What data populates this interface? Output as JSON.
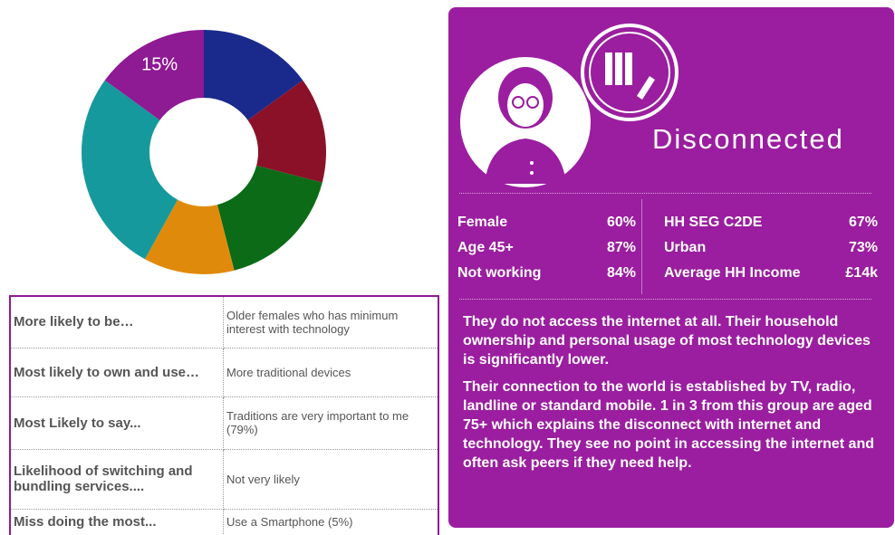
{
  "chart_data": {
    "type": "pie",
    "donut": true,
    "values": [
      15,
      14,
      17,
      12,
      27,
      15
    ],
    "value_labels": [
      null,
      null,
      null,
      null,
      null,
      "15%"
    ],
    "colors": [
      "#1a2a8c",
      "#8b1128",
      "#0b6b17",
      "#e08a0c",
      "#16999c",
      "#8e1a94"
    ]
  },
  "table": {
    "rows": [
      [
        "More likely to be…",
        "Older females who has minimum interest with technology"
      ],
      [
        "Most likely to own and use…",
        "More traditional devices"
      ],
      [
        "Most Likely to say...",
        "Traditions are very important to me (79%)"
      ],
      [
        " Likelihood of switching and bundling services....",
        "Not very likely"
      ],
      [
        "Miss doing the most...",
        "Use a Smartphone (5%)"
      ]
    ]
  },
  "profile": {
    "title": "Disconnected",
    "stats_left": [
      {
        "label": "Female",
        "value": "60%"
      },
      {
        "label": "Age 45+",
        "value": "87%"
      },
      {
        "label": "Not working",
        "value": "84%"
      }
    ],
    "stats_right": [
      {
        "label": "HH SEG C2DE",
        "value": "67%"
      },
      {
        "label": "Urban",
        "value": "73%"
      },
      {
        "label": "Average HH Income",
        "value": "£14k"
      }
    ],
    "paragraphs": [
      "They do not access the internet at all. Their household ownership and personal usage of most technology devices is significantly lower.",
      "Their connection to the world is established by TV, radio, landline or standard mobile. 1 in 3 from this group are aged 75+ which explains the disconnect with internet and technology. They see no point in accessing the internet and often ask peers if they need help."
    ]
  }
}
